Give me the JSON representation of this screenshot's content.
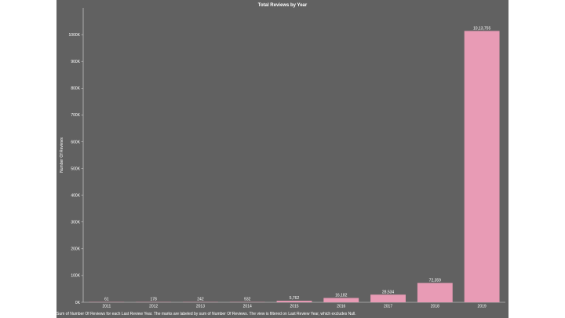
{
  "chart_data": {
    "type": "bar",
    "title": "Total Reviews by Year",
    "xlabel": "",
    "ylabel": "Number Of Reviews",
    "categories": [
      "2011",
      "2012",
      "2013",
      "2014",
      "2015",
      "2016",
      "2017",
      "2018",
      "2019"
    ],
    "values": [
      61,
      178,
      242,
      932,
      5762,
      16182,
      28534,
      72359,
      1013755
    ],
    "data_labels": [
      "61",
      "178",
      "242",
      "932",
      "5,762",
      "16,182",
      "28,534",
      "72,359",
      "10,13,755"
    ],
    "ylim": [
      0,
      1100000
    ],
    "yticks": [
      0,
      100000,
      200000,
      300000,
      400000,
      500000,
      600000,
      700000,
      800000,
      900000,
      1000000
    ],
    "ytick_labels": [
      "0K",
      "100K",
      "200K",
      "300K",
      "400K",
      "500K",
      "600K",
      "700K",
      "800K",
      "900K",
      "1000K"
    ],
    "grid": false,
    "bar_color": "#e89bb5",
    "background_color": "#616161"
  },
  "caption": "Sum of Number Of Reviews for each Last Review Year.  The marks are labeled by sum of Number Of Reviews. The view is filtered on Last Review Year, which excludes Null."
}
